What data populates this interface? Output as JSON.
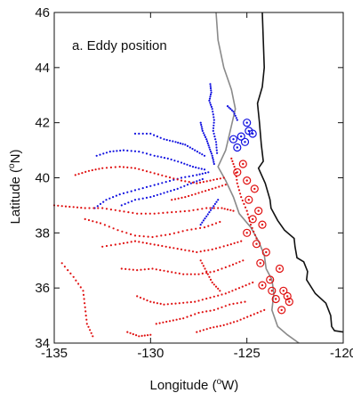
{
  "chart_data": {
    "type": "scatter",
    "title": "a. Eddy position",
    "xlabel_prefix": "Longitude (",
    "xlabel_unit": "W)",
    "ylabel_prefix": "Latitude (",
    "ylabel_unit": "N)",
    "degree_symbol": "o",
    "xlim": [
      -135,
      -120
    ],
    "ylim": [
      34,
      46
    ],
    "x_ticks": [
      -135,
      -130,
      -125,
      -120
    ],
    "y_ticks": [
      34,
      36,
      38,
      40,
      42,
      44,
      46
    ],
    "x_tick_labels": [
      "-135",
      "-130",
      "-125",
      "-120"
    ],
    "y_tick_labels": [
      "34",
      "36",
      "38",
      "40",
      "42",
      "44",
      "46"
    ],
    "grid": false,
    "colors": {
      "cyclonic": "#1010e0",
      "anticyclonic": "#e01010",
      "coastline": "#111111",
      "isobath": "#8a8a8a"
    },
    "coastline": [
      [
        -124.2,
        46.0
      ],
      [
        -124.15,
        45.0
      ],
      [
        -124.1,
        44.0
      ],
      [
        -124.2,
        43.3
      ],
      [
        -124.45,
        42.7
      ],
      [
        -124.35,
        42.0
      ],
      [
        -124.25,
        41.2
      ],
      [
        -124.15,
        40.6
      ],
      [
        -124.4,
        40.35
      ],
      [
        -124.05,
        39.8
      ],
      [
        -123.8,
        39.2
      ],
      [
        -123.75,
        38.9
      ],
      [
        -123.4,
        38.45
      ],
      [
        -123.05,
        38.1
      ],
      [
        -122.55,
        37.8
      ],
      [
        -122.5,
        37.5
      ],
      [
        -122.4,
        37.1
      ],
      [
        -122.05,
        36.95
      ],
      [
        -121.85,
        36.6
      ],
      [
        -121.9,
        36.3
      ],
      [
        -121.45,
        35.8
      ],
      [
        -120.9,
        35.45
      ],
      [
        -120.65,
        35.0
      ],
      [
        -120.6,
        34.6
      ],
      [
        -120.45,
        34.45
      ],
      [
        -120.0,
        34.4
      ]
    ],
    "isobath": [
      [
        -126.6,
        46.0
      ],
      [
        -126.5,
        45.0
      ],
      [
        -126.2,
        44.0
      ],
      [
        -125.8,
        43.2
      ],
      [
        -125.6,
        42.5
      ],
      [
        -125.9,
        41.6
      ],
      [
        -126.1,
        41.0
      ],
      [
        -126.5,
        40.4
      ],
      [
        -126.1,
        39.9
      ],
      [
        -125.7,
        39.3
      ],
      [
        -125.4,
        38.7
      ],
      [
        -124.8,
        38.2
      ],
      [
        -124.4,
        37.7
      ],
      [
        -124.1,
        37.2
      ],
      [
        -124.0,
        36.7
      ],
      [
        -123.7,
        36.3
      ],
      [
        -123.6,
        35.8
      ],
      [
        -123.7,
        35.2
      ],
      [
        -123.4,
        34.6
      ],
      [
        -122.9,
        34.3
      ],
      [
        -122.3,
        34.0
      ]
    ],
    "series": [
      {
        "name": "cyclonic",
        "color": "#1010e0",
        "tracks": [
          [
            [
              -126.9,
              43.4
            ],
            [
              -126.85,
              43.1
            ],
            [
              -126.95,
              42.8
            ],
            [
              -126.8,
              42.5
            ],
            [
              -126.7,
              42.1
            ],
            [
              -126.75,
              41.7
            ],
            [
              -126.6,
              41.3
            ],
            [
              -126.55,
              40.9
            ]
          ],
          [
            [
              -127.4,
              42.0
            ],
            [
              -127.3,
              41.7
            ],
            [
              -127.1,
              41.4
            ],
            [
              -126.95,
              41.1
            ],
            [
              -126.8,
              40.8
            ],
            [
              -126.7,
              40.5
            ]
          ],
          [
            [
              -130.8,
              41.6
            ],
            [
              -130.0,
              41.6
            ],
            [
              -129.3,
              41.4
            ],
            [
              -128.7,
              41.3
            ],
            [
              -128.2,
              41.2
            ],
            [
              -127.7,
              41.0
            ],
            [
              -127.2,
              40.8
            ]
          ],
          [
            [
              -132.8,
              40.8
            ],
            [
              -132.1,
              40.95
            ],
            [
              -131.4,
              41.0
            ],
            [
              -130.6,
              40.95
            ],
            [
              -129.8,
              40.8
            ],
            [
              -129.1,
              40.7
            ],
            [
              -128.4,
              40.55
            ],
            [
              -127.8,
              40.4
            ],
            [
              -127.2,
              40.3
            ]
          ],
          [
            [
              -132.9,
              38.9
            ],
            [
              -132.3,
              39.2
            ],
            [
              -131.6,
              39.4
            ],
            [
              -130.8,
              39.55
            ],
            [
              -130.0,
              39.7
            ],
            [
              -129.2,
              39.85
            ],
            [
              -128.4,
              40.0
            ],
            [
              -127.6,
              40.1
            ],
            [
              -127.0,
              40.2
            ]
          ],
          [
            [
              -131.5,
              39.0
            ],
            [
              -130.8,
              39.2
            ],
            [
              -130.0,
              39.3
            ],
            [
              -129.3,
              39.45
            ],
            [
              -128.6,
              39.6
            ],
            [
              -127.9,
              39.8
            ],
            [
              -127.3,
              39.95
            ]
          ],
          [
            [
              -126.0,
              42.6
            ],
            [
              -125.7,
              42.4
            ],
            [
              -125.5,
              42.1
            ]
          ],
          [
            [
              -127.4,
              38.3
            ],
            [
              -127.1,
              38.6
            ],
            [
              -126.8,
              38.9
            ],
            [
              -126.5,
              39.2
            ]
          ]
        ],
        "eddy_markers": [
          [
            -125.0,
            42.0
          ],
          [
            -124.9,
            41.7
          ],
          [
            -125.3,
            41.5
          ],
          [
            -125.1,
            41.3
          ],
          [
            -125.5,
            41.1
          ],
          [
            -124.7,
            41.6
          ],
          [
            -125.7,
            41.4
          ]
        ]
      },
      {
        "name": "anticyclonic",
        "color": "#e01010",
        "tracks": [
          [
            [
              -133.9,
              40.1
            ],
            [
              -133.2,
              40.25
            ],
            [
              -132.5,
              40.35
            ],
            [
              -131.6,
              40.4
            ],
            [
              -130.8,
              40.35
            ],
            [
              -130.0,
              40.2
            ],
            [
              -129.2,
              40.05
            ],
            [
              -128.4,
              39.9
            ],
            [
              -127.6,
              39.8
            ],
            [
              -126.9,
              39.9
            ],
            [
              -126.2,
              40.0
            ]
          ],
          [
            [
              -135.0,
              39.0
            ],
            [
              -134.2,
              38.95
            ],
            [
              -133.4,
              38.9
            ],
            [
              -132.5,
              38.9
            ],
            [
              -131.6,
              38.8
            ],
            [
              -130.7,
              38.7
            ],
            [
              -129.8,
              38.7
            ],
            [
              -128.9,
              38.75
            ],
            [
              -128.0,
              38.8
            ],
            [
              -127.1,
              38.9
            ],
            [
              -126.3,
              38.9
            ],
            [
              -125.7,
              38.8
            ]
          ],
          [
            [
              -133.4,
              38.5
            ],
            [
              -132.6,
              38.35
            ],
            [
              -131.7,
              38.1
            ],
            [
              -130.8,
              37.9
            ],
            [
              -129.9,
              37.85
            ],
            [
              -129.0,
              37.95
            ],
            [
              -128.1,
              38.1
            ],
            [
              -127.2,
              38.2
            ],
            [
              -126.4,
              38.4
            ]
          ],
          [
            [
              -132.5,
              37.5
            ],
            [
              -131.6,
              37.6
            ],
            [
              -130.8,
              37.7
            ],
            [
              -130.0,
              37.6
            ],
            [
              -129.2,
              37.5
            ],
            [
              -128.4,
              37.4
            ],
            [
              -127.6,
              37.3
            ],
            [
              -126.8,
              37.4
            ],
            [
              -126.0,
              37.55
            ],
            [
              -125.3,
              37.7
            ]
          ],
          [
            [
              -131.5,
              36.7
            ],
            [
              -130.7,
              36.65
            ],
            [
              -129.9,
              36.7
            ],
            [
              -129.1,
              36.6
            ],
            [
              -128.3,
              36.5
            ],
            [
              -127.5,
              36.5
            ],
            [
              -126.7,
              36.6
            ],
            [
              -125.9,
              36.8
            ],
            [
              -125.2,
              37.0
            ]
          ],
          [
            [
              -134.6,
              36.9
            ],
            [
              -134.0,
              36.4
            ],
            [
              -133.5,
              35.9
            ],
            [
              -133.4,
              35.3
            ],
            [
              -133.3,
              34.7
            ],
            [
              -133.0,
              34.25
            ]
          ],
          [
            [
              -130.7,
              35.7
            ],
            [
              -130.0,
              35.5
            ],
            [
              -129.3,
              35.4
            ],
            [
              -128.5,
              35.45
            ],
            [
              -127.7,
              35.5
            ],
            [
              -126.9,
              35.65
            ],
            [
              -126.1,
              35.8
            ],
            [
              -125.4,
              36.0
            ],
            [
              -124.7,
              36.2
            ]
          ],
          [
            [
              -129.7,
              34.7
            ],
            [
              -129.0,
              34.8
            ],
            [
              -128.3,
              34.9
            ],
            [
              -127.5,
              35.1
            ],
            [
              -126.7,
              35.2
            ],
            [
              -125.9,
              35.4
            ],
            [
              -125.1,
              35.5
            ]
          ],
          [
            [
              -127.6,
              34.4
            ],
            [
              -126.9,
              34.55
            ],
            [
              -126.2,
              34.65
            ],
            [
              -125.5,
              34.8
            ],
            [
              -124.8,
              35.0
            ],
            [
              -124.1,
              35.2
            ]
          ],
          [
            [
              -131.2,
              34.4
            ],
            [
              -130.6,
              34.25
            ],
            [
              -130.0,
              34.3
            ]
          ],
          [
            [
              -127.4,
              37.0
            ],
            [
              -127.1,
              36.6
            ],
            [
              -126.8,
              36.2
            ],
            [
              -126.4,
              35.9
            ]
          ],
          [
            [
              -128.9,
              39.2
            ],
            [
              -128.2,
              39.3
            ],
            [
              -127.5,
              39.45
            ],
            [
              -126.8,
              39.6
            ],
            [
              -126.1,
              39.75
            ]
          ],
          [
            [
              -125.8,
              40.7
            ],
            [
              -125.6,
              40.3
            ],
            [
              -125.5,
              39.8
            ],
            [
              -125.3,
              39.3
            ],
            [
              -125.0,
              38.8
            ],
            [
              -124.8,
              38.3
            ],
            [
              -124.5,
              37.8
            ]
          ]
        ],
        "eddy_markers": [
          [
            -125.5,
            40.2
          ],
          [
            -125.0,
            39.9
          ],
          [
            -124.6,
            39.6
          ],
          [
            -124.9,
            39.2
          ],
          [
            -124.4,
            38.8
          ],
          [
            -124.7,
            38.5
          ],
          [
            -124.2,
            38.3
          ],
          [
            -125.0,
            38.0
          ],
          [
            -124.5,
            37.6
          ],
          [
            -124.0,
            37.3
          ],
          [
            -124.3,
            36.9
          ],
          [
            -123.3,
            36.7
          ],
          [
            -123.8,
            36.3
          ],
          [
            -123.1,
            35.9
          ],
          [
            -123.5,
            35.6
          ],
          [
            -122.8,
            35.5
          ],
          [
            -123.2,
            35.2
          ],
          [
            -122.9,
            35.7
          ],
          [
            -123.7,
            35.9
          ],
          [
            -124.2,
            36.1
          ],
          [
            -125.2,
            40.5
          ]
        ]
      }
    ]
  }
}
